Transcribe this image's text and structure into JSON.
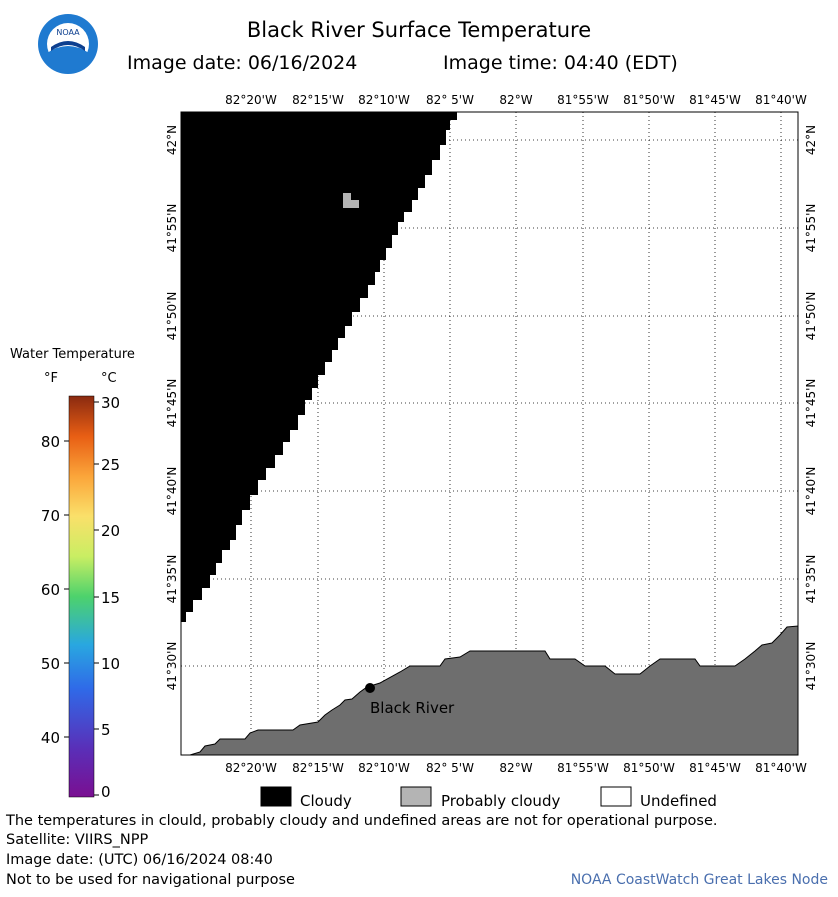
{
  "header": {
    "title": "Black River Surface Temperature",
    "image_date": "Image date: 06/16/2024",
    "image_time": "Image time: 04:40 (EDT)",
    "logo_text": "NOAA"
  },
  "map": {
    "top_axis": [
      "82°20'W",
      "82°15'W",
      "82°10'W",
      "82° 5'W",
      "82°W",
      "81°55'W",
      "81°50'W",
      "81°45'W",
      "81°40'W"
    ],
    "bottom_axis": [
      "82°20'W",
      "82°15'W",
      "82°10'W",
      "82° 5'W",
      "82°W",
      "81°55'W",
      "81°50'W",
      "81°45'W",
      "81°40'W"
    ],
    "left_axis": [
      "42°N",
      "41°55'N",
      "41°50'N",
      "41°45'N",
      "41°40'N",
      "41°35'N",
      "41°30'N"
    ],
    "right_axis": [
      "42°N",
      "41°55'N",
      "41°50'N",
      "41°45'N",
      "41°40'N",
      "41°35'N",
      "41°30'N"
    ],
    "place_label": "Black River",
    "colors": {
      "cloudy": "#000000",
      "probably_cloudy": "#b4b4b4",
      "land": "#6e6e6e",
      "undefined": "#ffffff"
    }
  },
  "colorbar": {
    "title": "Water Temperature",
    "unit_f": "°F",
    "unit_c": "°C",
    "f_ticks": [
      "80",
      "70",
      "60",
      "50",
      "40"
    ],
    "c_ticks": [
      "30",
      "25",
      "20",
      "15",
      "10",
      "5",
      "0"
    ]
  },
  "legend": {
    "cloudy": "Cloudy",
    "probably_cloudy": "Probably cloudy",
    "undefined": "Undefined"
  },
  "footer": {
    "disclaimer": "The temperatures in clould, probably cloudy and undefined areas are not for operational purpose.",
    "satellite": "Satellite: VIIRS_NPP",
    "utc_date": "Image date: (UTC) 06/16/2024  08:40",
    "nav_warning": "Not to be used for navigational purpose",
    "credit": "NOAA CoastWatch Great Lakes Node"
  }
}
